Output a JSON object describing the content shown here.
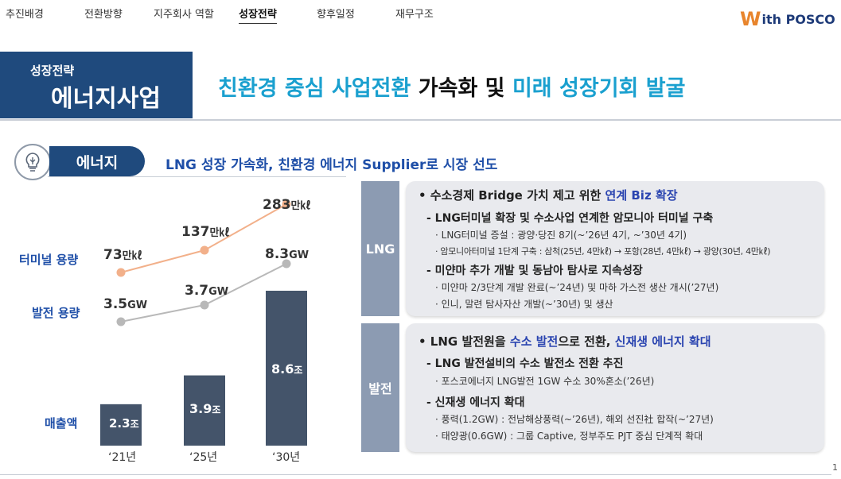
{
  "nav": {
    "items": [
      "추진배경",
      "전환방향",
      "지주회사 역할",
      "성장전략",
      "향후일정",
      "재무구조"
    ],
    "active_index": 3
  },
  "logo": {
    "mark": "W",
    "text": "ith POSCO"
  },
  "section": {
    "small": "성장전략",
    "big": "에너지사업",
    "headline_part1": "친환경 중심 사업전환",
    "headline_part2": "가속화 및",
    "headline_part3": "미래 성장기회 발굴"
  },
  "energy": {
    "icon": "lightbulb-icon",
    "label": "에너지",
    "title": "LNG 성장 가속화, 친환경 에너지 Supplier로 시장 선도"
  },
  "chart": {
    "row_labels": {
      "terminal": "터미널 용량",
      "power": "발전 용량",
      "sales": "매출액"
    },
    "terminal": [
      {
        "num": "73",
        "unit": "만㎘"
      },
      {
        "num": "137",
        "unit": "만㎘"
      },
      {
        "num": "283",
        "unit": "만㎘"
      }
    ],
    "power": [
      {
        "num": "3.5",
        "unit": "GW"
      },
      {
        "num": "3.7",
        "unit": "GW"
      },
      {
        "num": "8.3",
        "unit": "GW"
      }
    ],
    "sales": [
      {
        "num": "2.3",
        "unit": "조"
      },
      {
        "num": "3.9",
        "unit": "조"
      },
      {
        "num": "8.6",
        "unit": "조"
      }
    ],
    "years": [
      "‘21년",
      "‘25년",
      "‘30년"
    ],
    "colors": {
      "terminal": "#f2b08a",
      "power": "#b8b8b8",
      "bar": "#44546a"
    }
  },
  "chart_data": {
    "type": "bar",
    "categories": [
      "‘21년",
      "‘25년",
      "‘30년"
    ],
    "series": [
      {
        "name": "터미널 용량",
        "values": [
          73,
          137,
          283
        ]
      },
      {
        "name": "발전 용량",
        "values": [
          3.5,
          3.7,
          8.3
        ]
      },
      {
        "name": "매출액",
        "values": [
          2.3,
          3.9,
          8.6
        ]
      }
    ]
  },
  "lng_panel": {
    "tag": "LNG",
    "l1_prefix": "• 수소경제 Bridge 가치 제고 위한 ",
    "l1_blue": "연계 Biz 확장",
    "sub1_title": "- LNG터미널 확장 및 수소사업 연계한 암모니아 터미널 구축",
    "sub1_b1": "· LNG터미널 증설 : 광양·당진 8기(~’26년 4기, ~’30년 4기)",
    "sub1_b2": "· 암모니아터미널 1단계 구축 : 삼척(25년, 4만㎘) → 포항(28년, 4만㎘) → 광양(30년, 4만㎘)",
    "sub2_title": "- 미얀마 추가 개발 및 동남아 탐사로 지속성장",
    "sub2_b1": "· 미얀마 2/3단계 개발 완료(~’24년) 및 마하 가스전 생산 개시(’27년)",
    "sub2_b2": "· 인니, 말련 탐사자산 개발(~’30년) 및 생산"
  },
  "power_panel": {
    "tag": "발전",
    "l1_a": "• LNG 발전원을 ",
    "l1_b": "수소 발전",
    "l1_c": "으로 전환, ",
    "l1_d": "신재생 에너지 확대",
    "sub1_title": "- LNG 발전설비의 수소 발전소 전환 추진",
    "sub1_b1": "· 포스코에너지 LNG발전 1GW 수소 30%혼소(’26년)",
    "sub2_title": "- 신재생 에너지 확대",
    "sub2_b1": "· 풍력(1.2GW) : 전남해상풍력(~’26년), 해외 선진社 합작(~’27년)",
    "sub2_b2": "· 태양광(0.6GW) : 그룹 Captive, 정부주도 PJT 중심 단계적 확대"
  },
  "page_number": "1"
}
